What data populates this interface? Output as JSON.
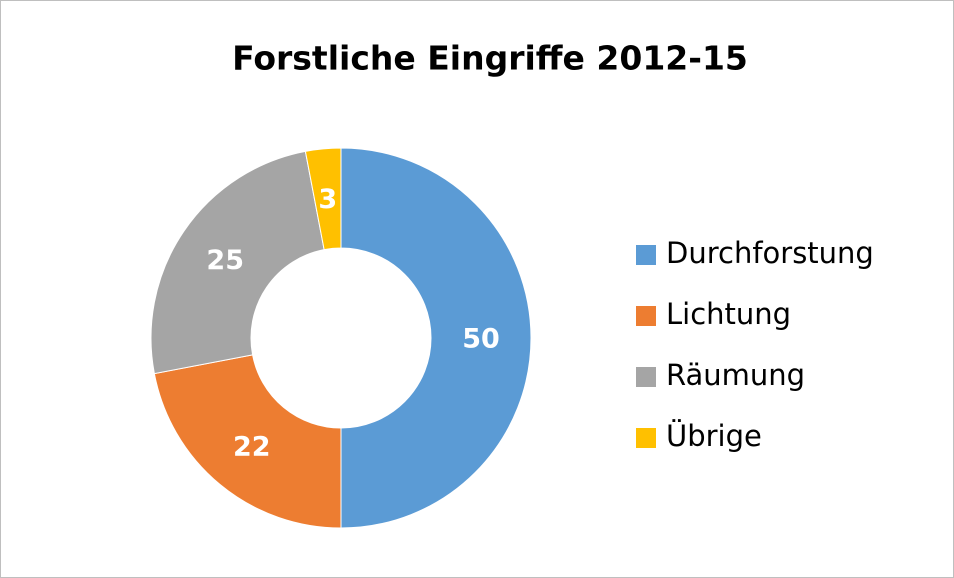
{
  "chart_data": {
    "type": "donut",
    "title": "Forstliche Eingriffe 2012-15",
    "categories": [
      "Durchforstung",
      "Lichtung",
      "Räumung",
      "Übrige"
    ],
    "values": [
      50,
      22,
      25,
      3
    ],
    "colors": [
      "#5b9bd5",
      "#ed7d31",
      "#a5a5a5",
      "#ffc000"
    ],
    "legend": "right"
  }
}
